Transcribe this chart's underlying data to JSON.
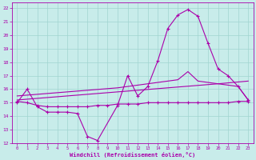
{
  "xlabel": "Windchill (Refroidissement éolien,°C)",
  "bg_color": "#c8ecea",
  "grid_color": "#a0d4d0",
  "line_color": "#aa00aa",
  "xlim": [
    -0.5,
    23.5
  ],
  "ylim": [
    12,
    22.4
  ],
  "xticks": [
    0,
    1,
    2,
    3,
    4,
    5,
    6,
    7,
    8,
    9,
    10,
    11,
    12,
    13,
    14,
    15,
    16,
    17,
    18,
    19,
    20,
    21,
    22,
    23
  ],
  "yticks": [
    12,
    13,
    14,
    15,
    16,
    17,
    18,
    19,
    20,
    21,
    22
  ],
  "curve1_x": [
    0,
    1,
    2,
    3,
    4,
    5,
    6,
    7,
    8,
    10,
    11,
    12,
    13,
    14,
    15,
    16,
    17,
    18,
    19,
    20,
    21,
    22,
    23
  ],
  "curve1_y": [
    15.0,
    16.0,
    14.7,
    14.3,
    14.3,
    14.3,
    14.2,
    12.5,
    12.2,
    14.8,
    17.0,
    15.5,
    16.2,
    18.1,
    20.5,
    21.5,
    21.9,
    21.4,
    19.4,
    17.5,
    17.0,
    16.2,
    15.2
  ],
  "curve2_x": [
    0,
    1,
    2,
    3,
    4,
    5,
    6,
    7,
    8,
    9,
    10,
    11,
    12,
    13,
    14,
    15,
    16,
    17,
    18,
    19,
    20,
    21,
    22,
    23
  ],
  "curve2_y": [
    15.1,
    15.0,
    14.8,
    14.7,
    14.7,
    14.7,
    14.7,
    14.7,
    14.8,
    14.8,
    14.9,
    14.9,
    14.9,
    15.0,
    15.0,
    15.0,
    15.0,
    15.0,
    15.0,
    15.0,
    15.0,
    15.0,
    15.1,
    15.1
  ],
  "curve3_x": [
    0,
    5,
    10,
    12,
    14,
    15,
    16,
    17,
    18,
    19,
    20,
    21,
    22,
    23
  ],
  "curve3_y": [
    15.5,
    15.8,
    16.1,
    16.3,
    16.5,
    16.6,
    16.7,
    17.3,
    16.6,
    16.5,
    16.4,
    16.3,
    16.2,
    15.2
  ],
  "curve4_x": [
    0,
    5,
    10,
    15,
    20,
    23
  ],
  "curve4_y": [
    15.2,
    15.5,
    15.8,
    16.1,
    16.4,
    16.6
  ]
}
